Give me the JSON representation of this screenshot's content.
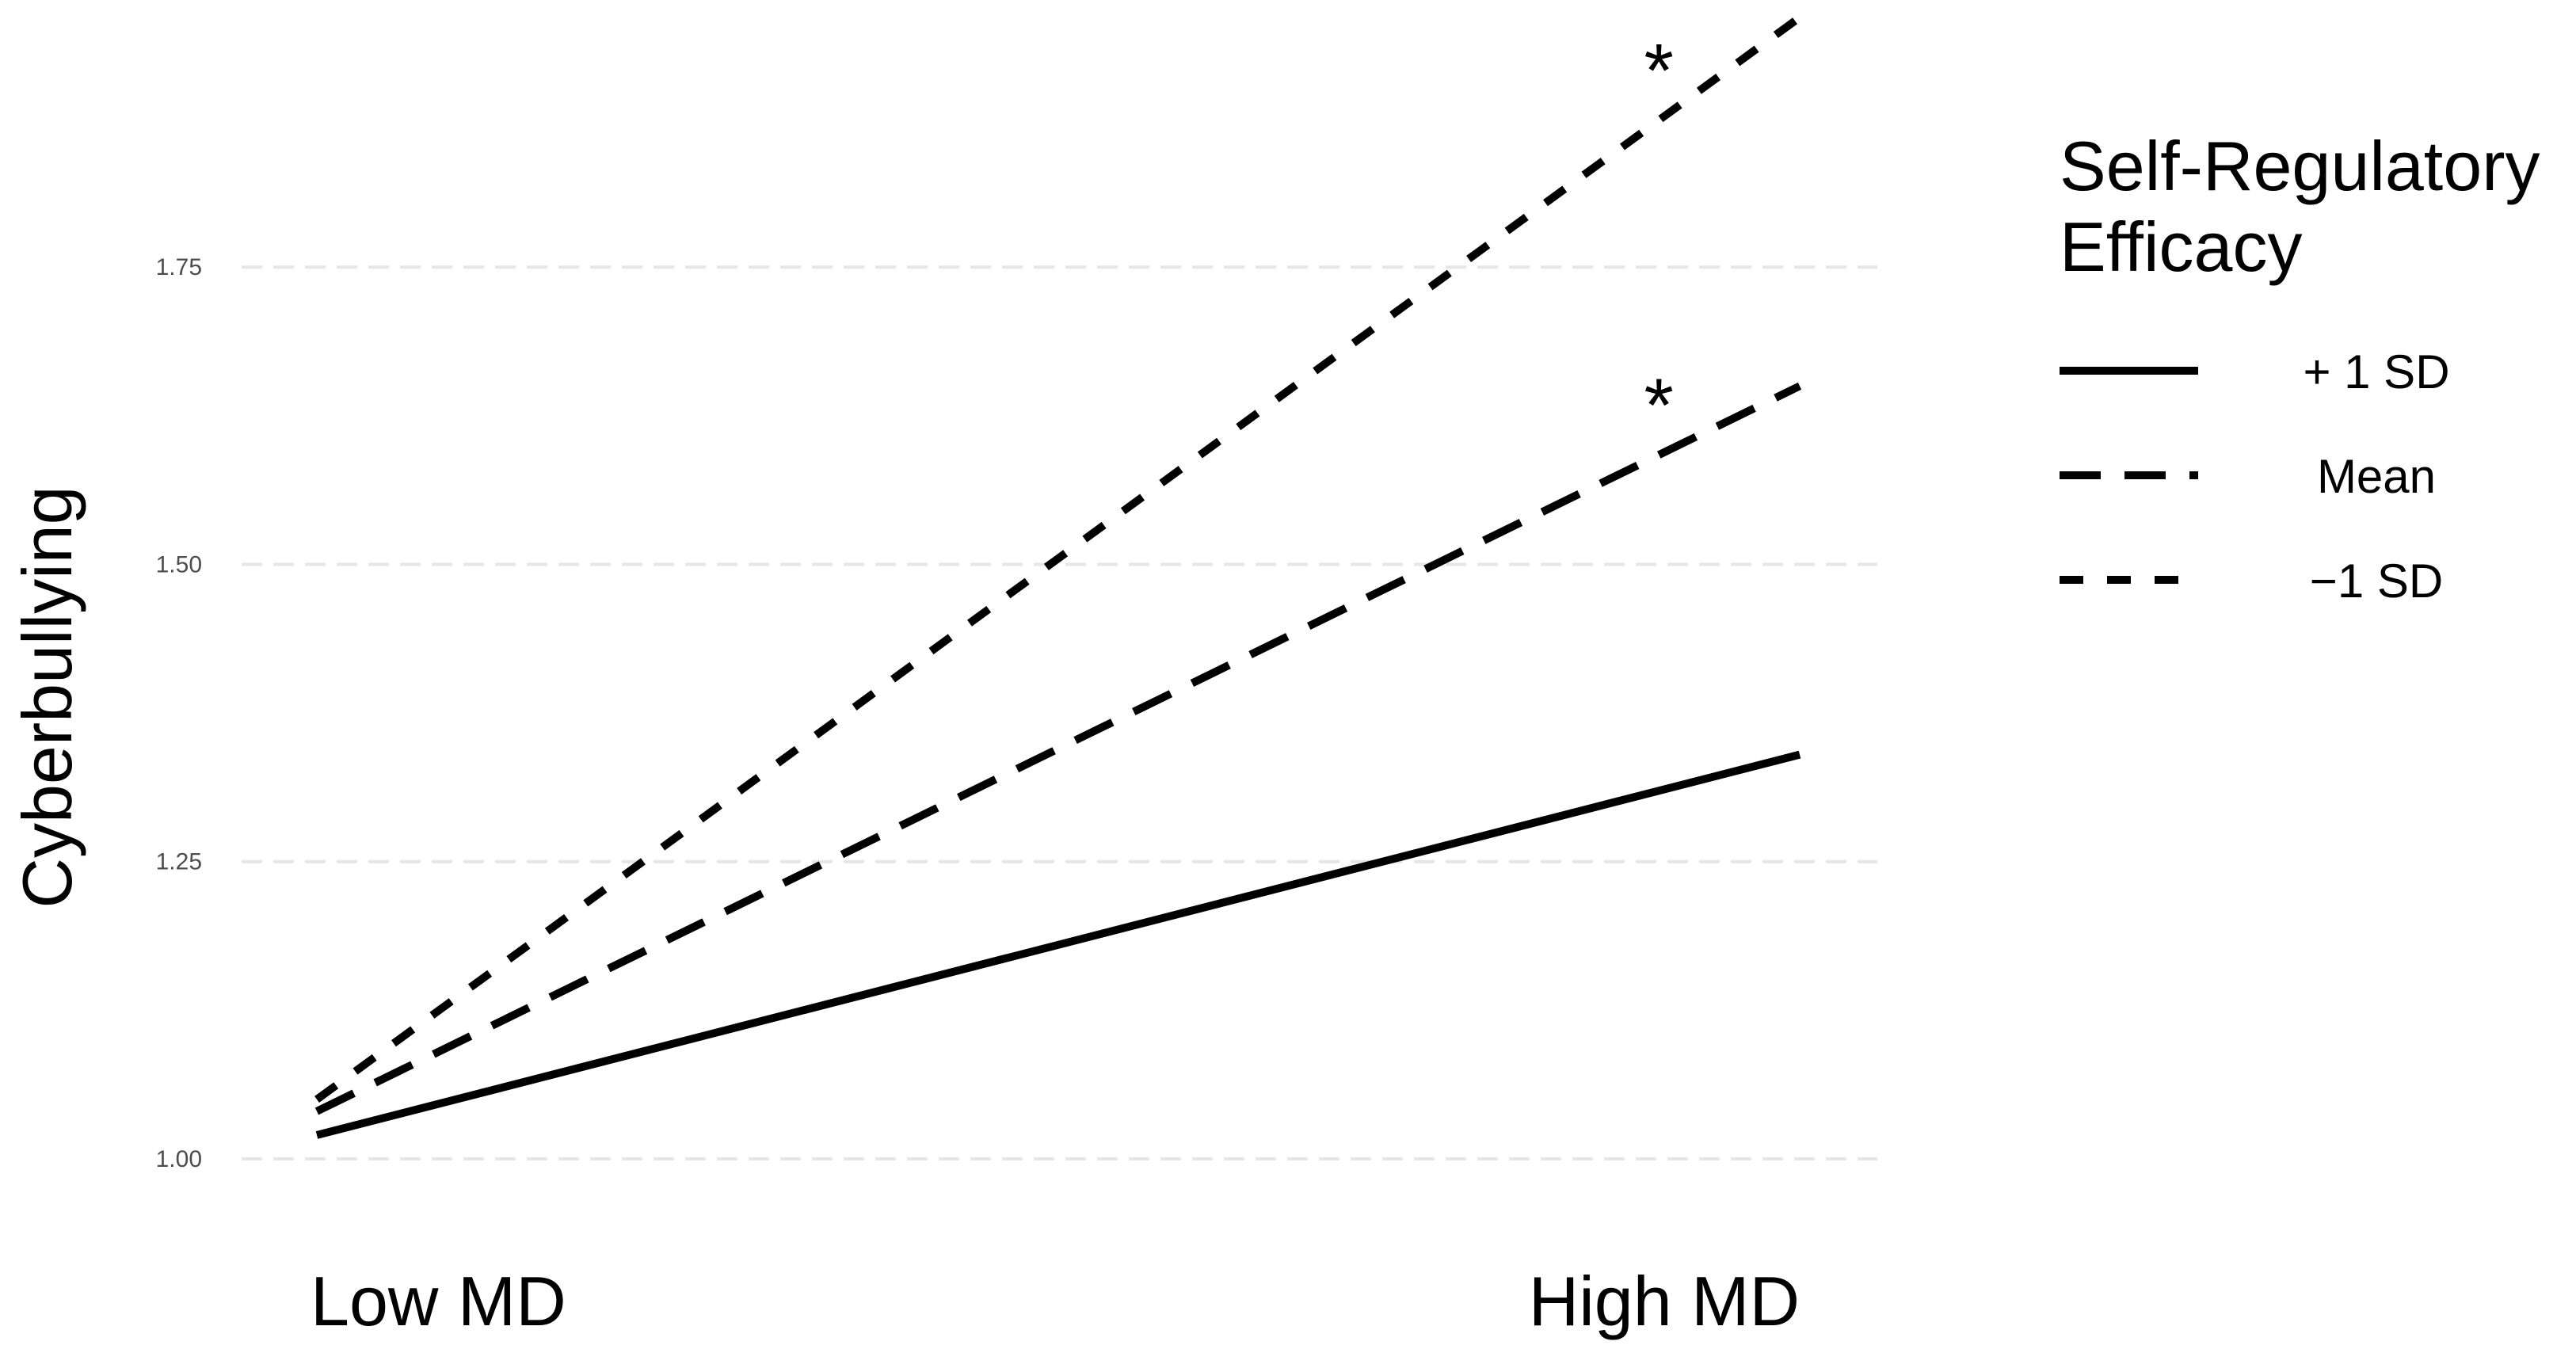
{
  "chart_data": {
    "type": "line",
    "title": "",
    "xlabel": "",
    "ylabel": "Cyberbullying",
    "categories": [
      "Low MD",
      "High MD"
    ],
    "y_ticks": [
      "1.00",
      "1.25",
      "1.50",
      "1.75"
    ],
    "ylim": [
      0.98,
      1.96
    ],
    "grid": true,
    "legend": {
      "title_lines": [
        "Self-Regulatory",
        "Efficacy"
      ],
      "position": "right"
    },
    "series": [
      {
        "name": "+ 1 SD",
        "values": [
          1.02,
          1.34
        ],
        "dash": "solid"
      },
      {
        "name": "Mean",
        "values": [
          1.04,
          1.65
        ],
        "dash": "long-dash",
        "annotation": "*"
      },
      {
        "name": "−1 SD",
        "values": [
          1.05,
          1.96
        ],
        "dash": "short-dash",
        "annotation": "*"
      }
    ]
  }
}
